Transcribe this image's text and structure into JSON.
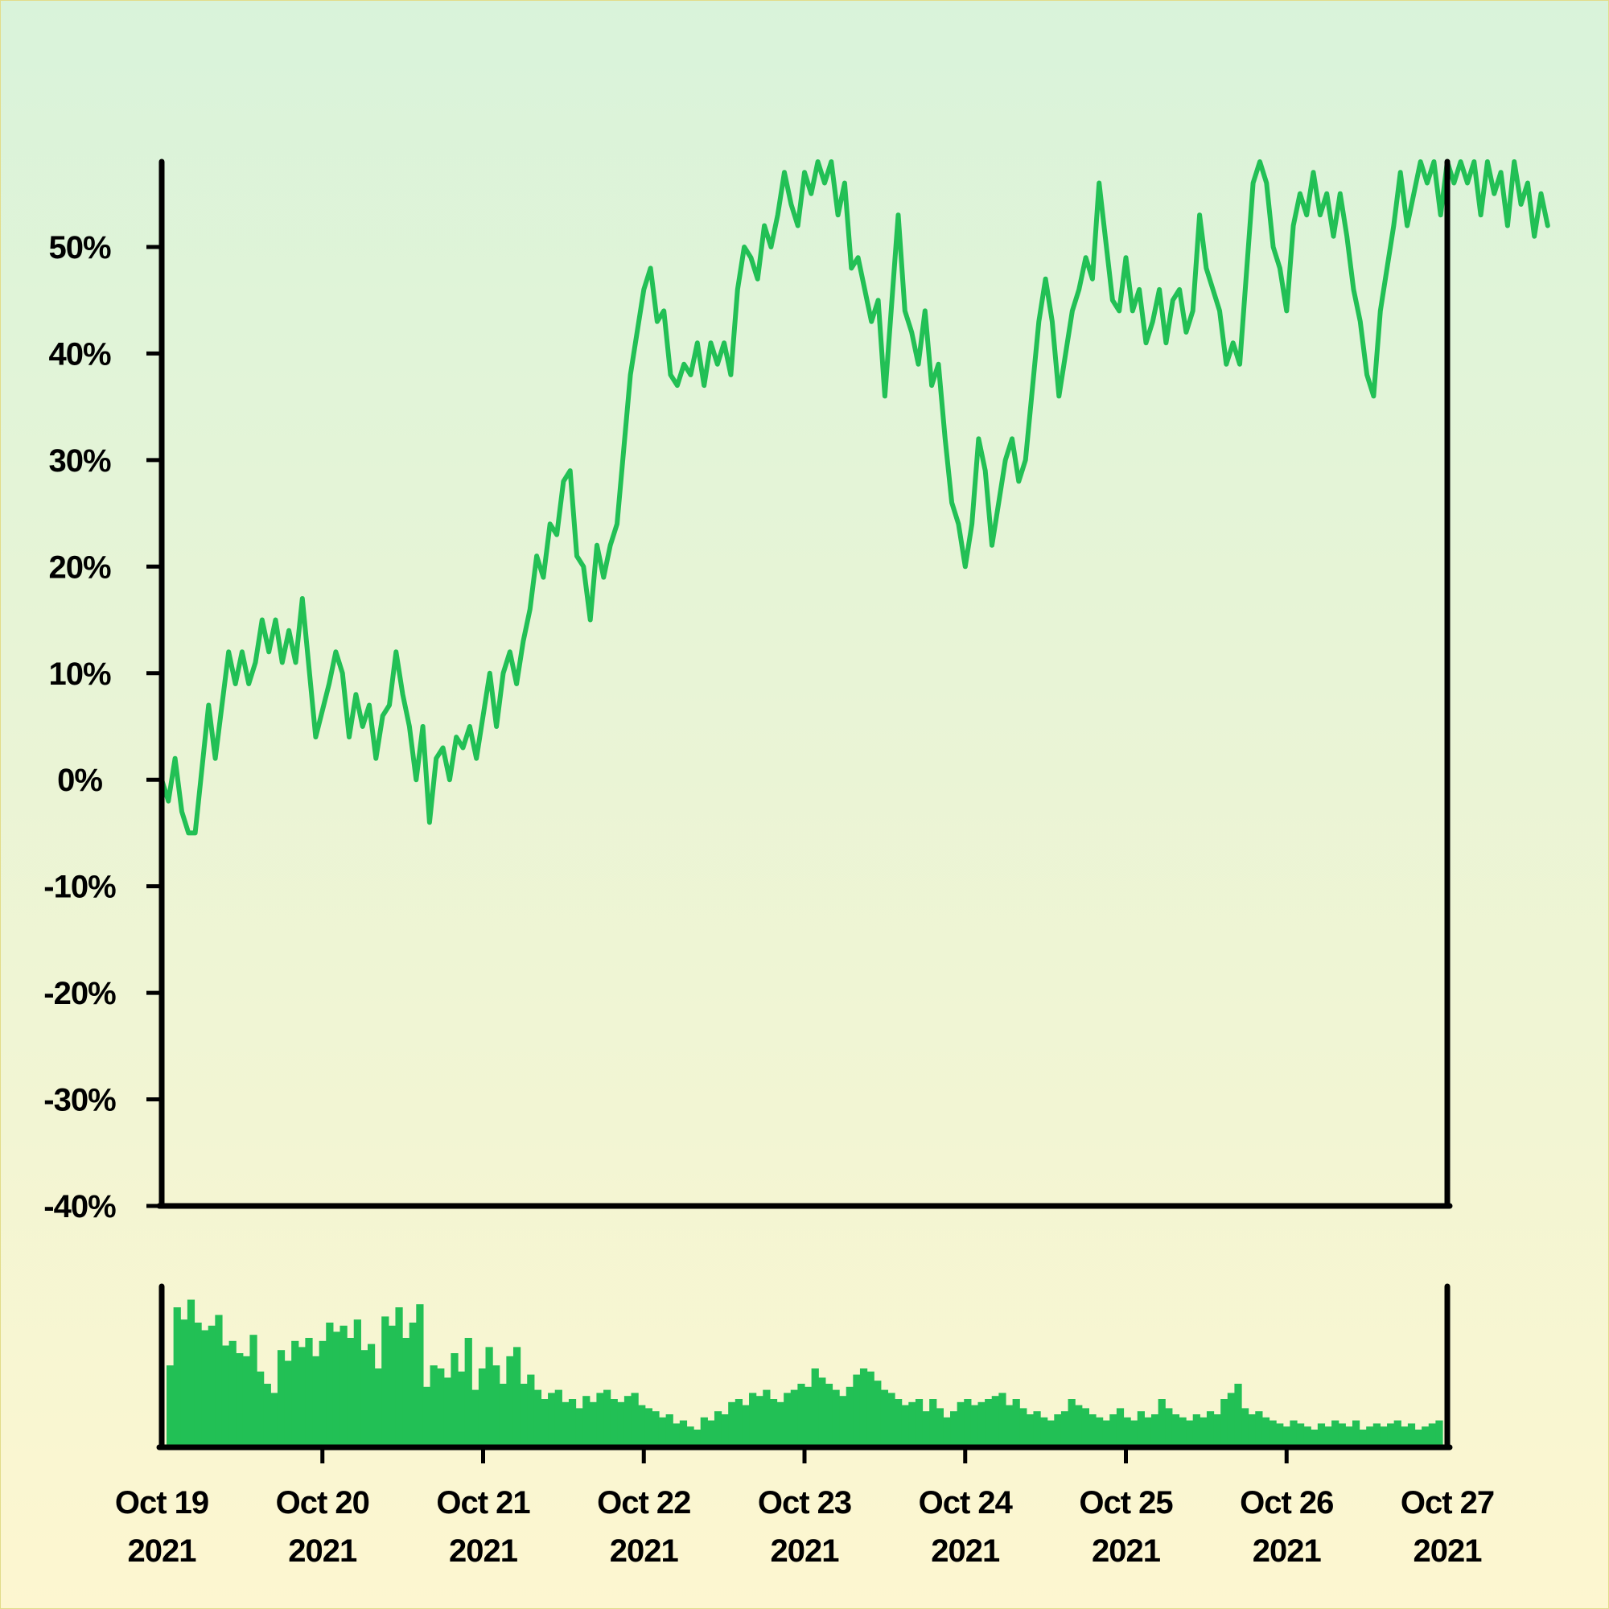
{
  "chart_data": {
    "type": "line",
    "title": "",
    "xlabel": "",
    "ylabel": "",
    "accent_color": "#22c055",
    "axis_color": "#000000",
    "ylim": [
      -40,
      58
    ],
    "y_ticks": [
      {
        "value": 50,
        "label": "50%"
      },
      {
        "value": 40,
        "label": "40%"
      },
      {
        "value": 30,
        "label": "30%"
      },
      {
        "value": 20,
        "label": "20%"
      },
      {
        "value": 10,
        "label": "10%"
      },
      {
        "value": 0,
        "label": "0%"
      },
      {
        "value": -10,
        "label": "-10%"
      },
      {
        "value": -20,
        "label": "-20%"
      },
      {
        "value": -30,
        "label": "-30%"
      },
      {
        "value": -40,
        "label": "-40%"
      }
    ],
    "x_ticks": [
      {
        "date": "2021-10-19",
        "line1": "Oct 19",
        "line2": "2021"
      },
      {
        "date": "2021-10-20",
        "line1": "Oct 20",
        "line2": "2021"
      },
      {
        "date": "2021-10-21",
        "line1": "Oct 21",
        "line2": "2021"
      },
      {
        "date": "2021-10-22",
        "line1": "Oct 22",
        "line2": "2021"
      },
      {
        "date": "2021-10-23",
        "line1": "Oct 23",
        "line2": "2021"
      },
      {
        "date": "2021-10-24",
        "line1": "Oct 24",
        "line2": "2021"
      },
      {
        "date": "2021-10-25",
        "line1": "Oct 25",
        "line2": "2021"
      },
      {
        "date": "2021-10-26",
        "line1": "Oct 26",
        "line2": "2021"
      },
      {
        "date": "2021-10-27",
        "line1": "Oct 27",
        "line2": "2021"
      }
    ],
    "series": [
      {
        "values": [
          [
            "2021-10-19T00:00",
            0
          ],
          [
            "2021-10-19T01:00",
            -2
          ],
          [
            "2021-10-19T02:00",
            2
          ],
          [
            "2021-10-19T03:00",
            -3
          ],
          [
            "2021-10-19T04:00",
            -5
          ],
          [
            "2021-10-19T05:00",
            -5
          ],
          [
            "2021-10-19T07:00",
            7
          ],
          [
            "2021-10-19T08:00",
            2
          ],
          [
            "2021-10-19T10:00",
            12
          ],
          [
            "2021-10-19T11:00",
            9
          ],
          [
            "2021-10-19T12:00",
            12
          ],
          [
            "2021-10-19T13:00",
            9
          ],
          [
            "2021-10-19T14:00",
            11
          ],
          [
            "2021-10-19T15:00",
            15
          ],
          [
            "2021-10-19T16:00",
            12
          ],
          [
            "2021-10-19T17:00",
            15
          ],
          [
            "2021-10-19T18:00",
            11
          ],
          [
            "2021-10-19T19:00",
            14
          ],
          [
            "2021-10-19T20:00",
            11
          ],
          [
            "2021-10-19T21:00",
            17
          ],
          [
            "2021-10-19T23:00",
            4
          ],
          [
            "2021-10-20T01:00",
            9
          ],
          [
            "2021-10-20T02:00",
            12
          ],
          [
            "2021-10-20T03:00",
            10
          ],
          [
            "2021-10-20T04:00",
            4
          ],
          [
            "2021-10-20T05:00",
            8
          ],
          [
            "2021-10-20T06:00",
            5
          ],
          [
            "2021-10-20T07:00",
            7
          ],
          [
            "2021-10-20T08:00",
            2
          ],
          [
            "2021-10-20T09:00",
            6
          ],
          [
            "2021-10-20T10:00",
            7
          ],
          [
            "2021-10-20T11:00",
            12
          ],
          [
            "2021-10-20T12:00",
            8
          ],
          [
            "2021-10-20T13:00",
            5
          ],
          [
            "2021-10-20T14:00",
            0
          ],
          [
            "2021-10-20T15:00",
            5
          ],
          [
            "2021-10-20T16:00",
            -4
          ],
          [
            "2021-10-20T17:00",
            2
          ],
          [
            "2021-10-20T18:00",
            3
          ],
          [
            "2021-10-20T19:00",
            0
          ],
          [
            "2021-10-20T20:00",
            4
          ],
          [
            "2021-10-20T21:00",
            3
          ],
          [
            "2021-10-20T22:00",
            5
          ],
          [
            "2021-10-20T23:00",
            2
          ],
          [
            "2021-10-21T00:00",
            6
          ],
          [
            "2021-10-21T01:00",
            10
          ],
          [
            "2021-10-21T02:00",
            5
          ],
          [
            "2021-10-21T03:00",
            10
          ],
          [
            "2021-10-21T04:00",
            12
          ],
          [
            "2021-10-21T05:00",
            9
          ],
          [
            "2021-10-21T06:00",
            13
          ],
          [
            "2021-10-21T07:00",
            16
          ],
          [
            "2021-10-21T08:00",
            21
          ],
          [
            "2021-10-21T09:00",
            19
          ],
          [
            "2021-10-21T10:00",
            24
          ],
          [
            "2021-10-21T11:00",
            23
          ],
          [
            "2021-10-21T12:00",
            28
          ],
          [
            "2021-10-21T13:00",
            29
          ],
          [
            "2021-10-21T14:00",
            21
          ],
          [
            "2021-10-21T15:00",
            20
          ],
          [
            "2021-10-21T16:00",
            15
          ],
          [
            "2021-10-21T17:00",
            22
          ],
          [
            "2021-10-21T18:00",
            19
          ],
          [
            "2021-10-21T19:00",
            22
          ],
          [
            "2021-10-21T20:00",
            24
          ],
          [
            "2021-10-21T22:00",
            38
          ],
          [
            "2021-10-22T00:00",
            46
          ],
          [
            "2021-10-22T01:00",
            48
          ],
          [
            "2021-10-22T02:00",
            43
          ],
          [
            "2021-10-22T03:00",
            44
          ],
          [
            "2021-10-22T04:00",
            38
          ],
          [
            "2021-10-22T05:00",
            37
          ],
          [
            "2021-10-22T06:00",
            39
          ],
          [
            "2021-10-22T07:00",
            38
          ],
          [
            "2021-10-22T08:00",
            41
          ],
          [
            "2021-10-22T09:00",
            37
          ],
          [
            "2021-10-22T10:00",
            41
          ],
          [
            "2021-10-22T11:00",
            39
          ],
          [
            "2021-10-22T12:00",
            41
          ],
          [
            "2021-10-22T13:00",
            38
          ],
          [
            "2021-10-22T14:00",
            46
          ],
          [
            "2021-10-22T15:00",
            50
          ],
          [
            "2021-10-22T16:00",
            49
          ],
          [
            "2021-10-22T17:00",
            47
          ],
          [
            "2021-10-22T18:00",
            52
          ],
          [
            "2021-10-22T19:00",
            50
          ],
          [
            "2021-10-22T20:00",
            53
          ],
          [
            "2021-10-22T21:00",
            57
          ],
          [
            "2021-10-22T22:00",
            54
          ],
          [
            "2021-10-22T23:00",
            52
          ],
          [
            "2021-10-23T00:00",
            57
          ],
          [
            "2021-10-23T01:00",
            55
          ],
          [
            "2021-10-23T02:00",
            58
          ],
          [
            "2021-10-23T03:00",
            56
          ],
          [
            "2021-10-23T04:00",
            58
          ],
          [
            "2021-10-23T05:00",
            53
          ],
          [
            "2021-10-23T06:00",
            56
          ],
          [
            "2021-10-23T07:00",
            48
          ],
          [
            "2021-10-23T08:00",
            49
          ],
          [
            "2021-10-23T09:00",
            46
          ],
          [
            "2021-10-23T10:00",
            43
          ],
          [
            "2021-10-23T11:00",
            45
          ],
          [
            "2021-10-23T12:00",
            36
          ],
          [
            "2021-10-23T14:00",
            53
          ],
          [
            "2021-10-23T15:00",
            44
          ],
          [
            "2021-10-23T16:00",
            42
          ],
          [
            "2021-10-23T17:00",
            39
          ],
          [
            "2021-10-23T18:00",
            44
          ],
          [
            "2021-10-23T19:00",
            37
          ],
          [
            "2021-10-23T20:00",
            39
          ],
          [
            "2021-10-23T21:00",
            32
          ],
          [
            "2021-10-23T22:00",
            26
          ],
          [
            "2021-10-23T23:00",
            24
          ],
          [
            "2021-10-24T00:00",
            20
          ],
          [
            "2021-10-24T01:00",
            24
          ],
          [
            "2021-10-24T02:00",
            32
          ],
          [
            "2021-10-24T03:00",
            29
          ],
          [
            "2021-10-24T04:00",
            22
          ],
          [
            "2021-10-24T05:00",
            26
          ],
          [
            "2021-10-24T06:00",
            30
          ],
          [
            "2021-10-24T07:00",
            32
          ],
          [
            "2021-10-24T08:00",
            28
          ],
          [
            "2021-10-24T09:00",
            30
          ],
          [
            "2021-10-24T11:00",
            43
          ],
          [
            "2021-10-24T12:00",
            47
          ],
          [
            "2021-10-24T13:00",
            43
          ],
          [
            "2021-10-24T14:00",
            36
          ],
          [
            "2021-10-24T15:00",
            40
          ],
          [
            "2021-10-24T16:00",
            44
          ],
          [
            "2021-10-24T17:00",
            46
          ],
          [
            "2021-10-24T18:00",
            49
          ],
          [
            "2021-10-24T19:00",
            47
          ],
          [
            "2021-10-24T20:00",
            56
          ],
          [
            "2021-10-24T22:00",
            45
          ],
          [
            "2021-10-24T23:00",
            44
          ],
          [
            "2021-10-25T00:00",
            49
          ],
          [
            "2021-10-25T01:00",
            44
          ],
          [
            "2021-10-25T02:00",
            46
          ],
          [
            "2021-10-25T03:00",
            41
          ],
          [
            "2021-10-25T04:00",
            43
          ],
          [
            "2021-10-25T05:00",
            46
          ],
          [
            "2021-10-25T06:00",
            41
          ],
          [
            "2021-10-25T07:00",
            45
          ],
          [
            "2021-10-25T08:00",
            46
          ],
          [
            "2021-10-25T09:00",
            42
          ],
          [
            "2021-10-25T10:00",
            44
          ],
          [
            "2021-10-25T11:00",
            53
          ],
          [
            "2021-10-25T12:00",
            48
          ],
          [
            "2021-10-25T13:00",
            46
          ],
          [
            "2021-10-25T14:00",
            44
          ],
          [
            "2021-10-25T15:00",
            39
          ],
          [
            "2021-10-25T16:00",
            41
          ],
          [
            "2021-10-25T17:00",
            39
          ],
          [
            "2021-10-25T19:00",
            56
          ],
          [
            "2021-10-25T20:00",
            58
          ],
          [
            "2021-10-25T21:00",
            56
          ],
          [
            "2021-10-25T22:00",
            50
          ],
          [
            "2021-10-25T23:00",
            48
          ],
          [
            "2021-10-26T00:00",
            44
          ],
          [
            "2021-10-26T01:00",
            52
          ],
          [
            "2021-10-26T02:00",
            55
          ],
          [
            "2021-10-26T03:00",
            53
          ],
          [
            "2021-10-26T04:00",
            57
          ],
          [
            "2021-10-26T05:00",
            53
          ],
          [
            "2021-10-26T06:00",
            55
          ],
          [
            "2021-10-26T07:00",
            51
          ],
          [
            "2021-10-26T08:00",
            55
          ],
          [
            "2021-10-26T09:00",
            51
          ],
          [
            "2021-10-26T10:00",
            46
          ],
          [
            "2021-10-26T11:00",
            43
          ],
          [
            "2021-10-26T12:00",
            38
          ],
          [
            "2021-10-26T13:00",
            36
          ],
          [
            "2021-10-26T14:00",
            44
          ],
          [
            "2021-10-26T15:00",
            48
          ],
          [
            "2021-10-26T16:00",
            52
          ],
          [
            "2021-10-26T17:00",
            57
          ],
          [
            "2021-10-26T18:00",
            52
          ],
          [
            "2021-10-26T19:00",
            55
          ],
          [
            "2021-10-26T20:00",
            58
          ],
          [
            "2021-10-26T21:00",
            56
          ],
          [
            "2021-10-26T22:00",
            58
          ],
          [
            "2021-10-26T23:00",
            53
          ],
          [
            "2021-10-27T00:00",
            58
          ],
          [
            "2021-10-27T01:00",
            56
          ],
          [
            "2021-10-27T02:00",
            58
          ],
          [
            "2021-10-27T03:00",
            56
          ],
          [
            "2021-10-27T04:00",
            58
          ],
          [
            "2021-10-27T05:00",
            53
          ],
          [
            "2021-10-27T06:00",
            58
          ],
          [
            "2021-10-27T07:00",
            55
          ],
          [
            "2021-10-27T08:00",
            57
          ],
          [
            "2021-10-27T09:00",
            52
          ],
          [
            "2021-10-27T10:00",
            58
          ],
          [
            "2021-10-27T11:00",
            54
          ],
          [
            "2021-10-27T12:00",
            56
          ],
          [
            "2021-10-27T13:00",
            51
          ],
          [
            "2021-10-27T14:00",
            55
          ],
          [
            "2021-10-27T15:00",
            52
          ]
        ]
      }
    ],
    "volume": {
      "type": "bar",
      "ylim": [
        0,
        100
      ],
      "values": [
        52,
        90,
        82,
        95,
        80,
        75,
        78,
        85,
        65,
        68,
        60,
        58,
        72,
        48,
        40,
        34,
        62,
        55,
        68,
        64,
        70,
        58,
        68,
        80,
        74,
        78,
        70,
        82,
        62,
        66,
        50,
        84,
        78,
        90,
        70,
        80,
        92,
        38,
        52,
        50,
        44,
        60,
        48,
        70,
        36,
        50,
        64,
        52,
        40,
        58,
        64,
        40,
        46,
        36,
        30,
        34,
        36,
        28,
        30,
        24,
        32,
        28,
        34,
        36,
        30,
        28,
        32,
        34,
        26,
        24,
        22,
        18,
        20,
        14,
        16,
        12,
        10,
        18,
        16,
        22,
        20,
        28,
        30,
        26,
        34,
        32,
        36,
        30,
        28,
        34,
        36,
        40,
        38,
        50,
        44,
        40,
        36,
        32,
        38,
        46,
        50,
        48,
        42,
        36,
        34,
        30,
        26,
        28,
        30,
        22,
        30,
        24,
        18,
        22,
        28,
        30,
        26,
        28,
        30,
        32,
        34,
        26,
        30,
        24,
        20,
        22,
        18,
        16,
        20,
        22,
        30,
        26,
        24,
        20,
        18,
        16,
        20,
        24,
        18,
        16,
        22,
        18,
        20,
        30,
        24,
        20,
        18,
        16,
        20,
        18,
        22,
        20,
        30,
        34,
        40,
        24,
        20,
        22,
        18,
        16,
        14,
        12,
        16,
        14,
        12,
        10,
        14,
        12,
        16,
        14,
        12,
        16,
        10,
        12,
        14,
        12,
        14,
        16,
        12,
        14,
        10,
        12,
        14,
        16
      ]
    }
  }
}
